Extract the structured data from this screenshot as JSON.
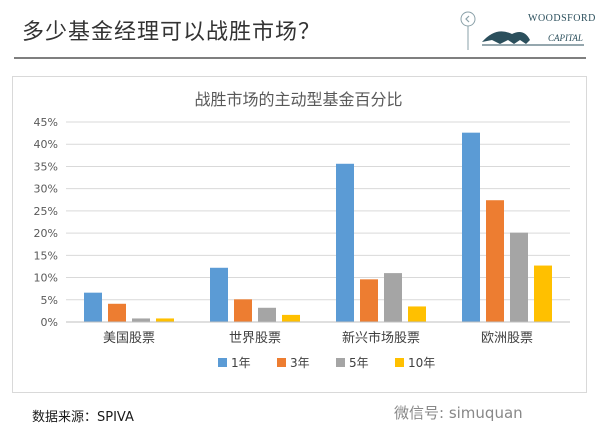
{
  "header": {
    "title": "多少基金经理可以战胜市场？",
    "logo_line1": "WOODSFORD",
    "logo_line2": "CAPITAL"
  },
  "chart_data": {
    "type": "bar",
    "title": "战胜市场的主动型基金百分比",
    "categories": [
      "美国股票",
      "世界股票",
      "新兴市场股票",
      "欧洲股票"
    ],
    "series": [
      {
        "name": "1年",
        "color": "#5b9bd5",
        "values": [
          6.6,
          12.2,
          35.6,
          42.6
        ]
      },
      {
        "name": "3年",
        "color": "#ed7d31",
        "values": [
          4.1,
          5.1,
          9.6,
          27.4
        ]
      },
      {
        "name": "5年",
        "color": "#a5a5a5",
        "values": [
          0.8,
          3.2,
          11.0,
          20.1
        ]
      },
      {
        "name": "10年",
        "color": "#ffc000",
        "values": [
          0.8,
          1.6,
          3.5,
          12.7
        ]
      }
    ],
    "ylim": [
      0,
      45
    ],
    "yticks": [
      "0%",
      "5%",
      "10%",
      "15%",
      "20%",
      "25%",
      "30%",
      "35%",
      "40%",
      "45%"
    ],
    "grid": true,
    "legend_position": "bottom"
  },
  "footer": {
    "source": "数据来源：SPIVA",
    "watermark": "微信号: simuquan"
  }
}
